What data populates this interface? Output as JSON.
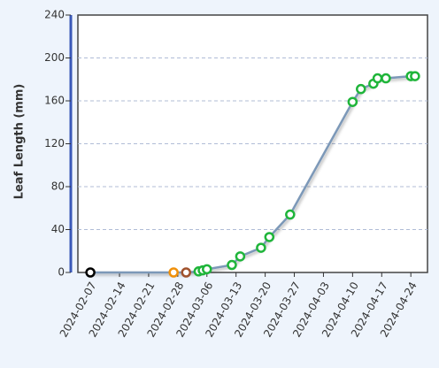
{
  "chart_data": {
    "type": "line",
    "y_label": "Leaf Length (mm)",
    "series": [
      {
        "color": "#7b98b8",
        "point_colors": [
          "#000000",
          "#f0900a",
          "#a0522d",
          "#1fb53a",
          "#1fb53a",
          "#1fb53a",
          "#1fb53a",
          "#1fb53a",
          "#1fb53a",
          "#1fb53a",
          "#1fb53a",
          "#1fb53a",
          "#1fb53a",
          "#1fb53a",
          "#1fb53a",
          "#1fb53a",
          "#1fb53a",
          "#1fb53a"
        ],
        "x": [
          "2024-02-07",
          "2024-02-27",
          "2024-03-01",
          "2024-03-04",
          "2024-03-05",
          "2024-03-06",
          "2024-03-12",
          "2024-03-14",
          "2024-03-19",
          "2024-03-21",
          "2024-03-26",
          "2024-04-10",
          "2024-04-12",
          "2024-04-15",
          "2024-04-16",
          "2024-04-18",
          "2024-04-24",
          "2024-04-25"
        ],
        "values": [
          0,
          0,
          0,
          1,
          2,
          3,
          7,
          15,
          23,
          33,
          54,
          159,
          171,
          176,
          181,
          181,
          183,
          183
        ]
      }
    ],
    "xlim": [
      "2024-02-04",
      "2024-04-28"
    ],
    "xticks": [
      "2024-02-07",
      "2024-02-14",
      "2024-02-21",
      "2024-02-28",
      "2024-03-06",
      "2024-03-13",
      "2024-03-20",
      "2024-03-27",
      "2024-04-03",
      "2024-04-10",
      "2024-04-17",
      "2024-04-24"
    ],
    "ylim": [
      0,
      240
    ],
    "yticks": [
      0,
      40,
      80,
      120,
      160,
      200,
      240
    ],
    "grid": true
  }
}
